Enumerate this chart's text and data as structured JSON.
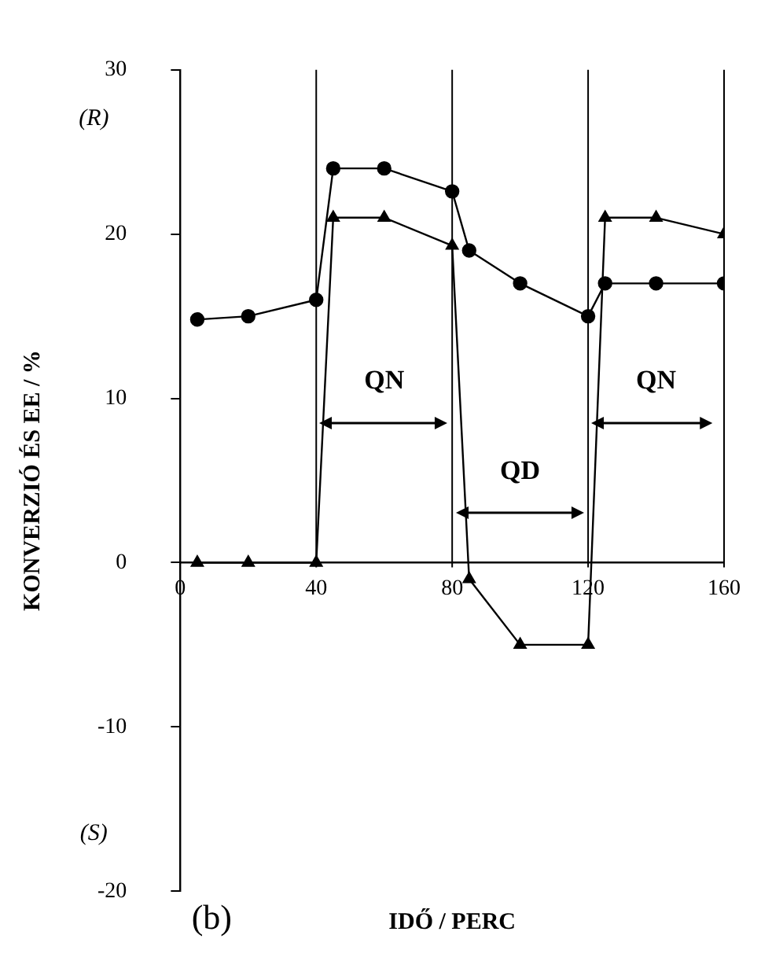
{
  "chart_data": {
    "type": "line",
    "xlabel": "IDŐ / PERC",
    "ylabel": "KONVERZIÓ ÉS EE / %",
    "xlim": [
      0,
      160
    ],
    "xticks": [
      0,
      40,
      80,
      120,
      160
    ],
    "ylim": [
      -20,
      30
    ],
    "yticks": [
      -20,
      -10,
      0,
      10,
      20,
      30
    ],
    "grid": false,
    "legend": false,
    "line_style": "solid",
    "series": [
      {
        "color": "#000000",
        "marker": "circle",
        "x": [
          5,
          20,
          40,
          45,
          60,
          80,
          85,
          100,
          120,
          125,
          140,
          160
        ],
        "values": [
          14.8,
          15,
          16,
          24,
          24,
          22.6,
          19,
          17,
          15,
          17,
          17,
          17
        ]
      },
      {
        "color": "#000000",
        "marker": "triangle",
        "x": [
          5,
          20,
          40,
          45,
          60,
          80,
          85,
          100,
          120,
          125,
          140,
          160
        ],
        "values": [
          0,
          0,
          0,
          21,
          21,
          19.3,
          -1,
          -5,
          -5,
          21,
          21,
          20
        ]
      }
    ],
    "ref_lines": [
      {
        "axis": "x",
        "value": 40
      },
      {
        "axis": "x",
        "value": 80
      },
      {
        "axis": "x",
        "value": 120
      },
      {
        "axis": "x",
        "value": 160
      }
    ],
    "annotations": [
      "QN",
      "QD",
      "QN",
      "(R)",
      "(S)",
      "(b)"
    ]
  }
}
